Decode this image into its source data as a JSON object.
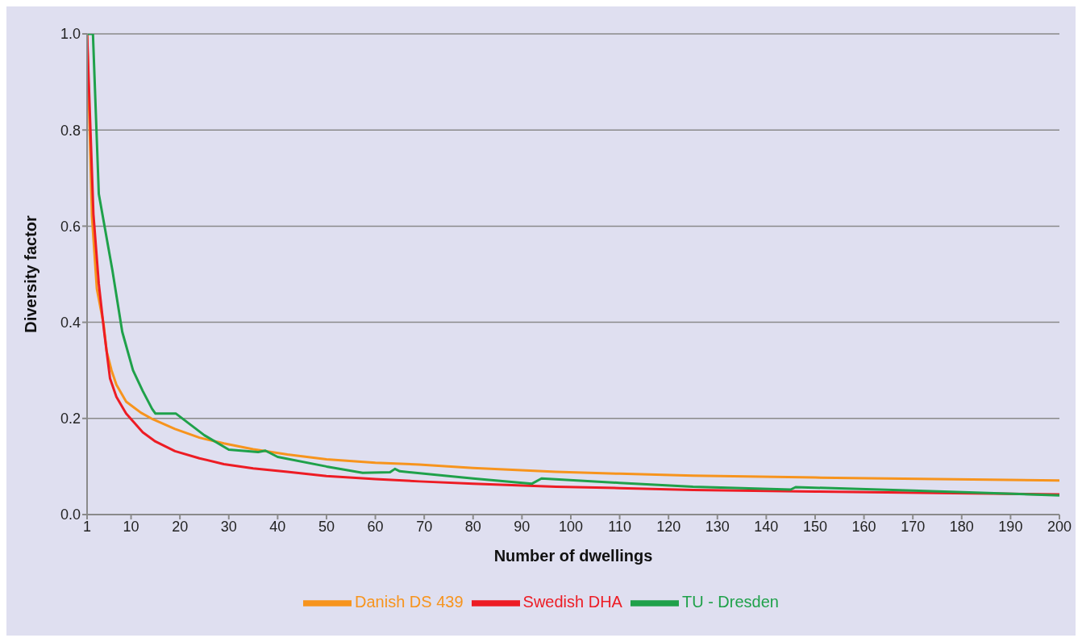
{
  "chart_data": {
    "type": "line",
    "xlabel": "Number of dwellings",
    "ylabel": "Diversity factor",
    "xlim": [
      1,
      200
    ],
    "xticks": [
      1,
      10,
      20,
      30,
      40,
      50,
      60,
      70,
      80,
      90,
      100,
      110,
      120,
      130,
      140,
      150,
      160,
      170,
      180,
      190,
      200
    ],
    "ylim": [
      0,
      1
    ],
    "yticks": [
      {
        "value": 0,
        "label": "0.0"
      },
      {
        "value": 0.2,
        "label": "0.2"
      },
      {
        "value": 0.4,
        "label": "0.4"
      },
      {
        "value": 0.6,
        "label": "0.6"
      },
      {
        "value": 0.8,
        "label": "0.8"
      },
      {
        "value": 1,
        "label": "1.0"
      }
    ],
    "grid": "y",
    "legend": "bottom",
    "marker": "none",
    "line_style": "solid",
    "series": [
      {
        "name": "Danish DS 439",
        "color": "#f7941d",
        "x": [
          1,
          2,
          3,
          4.4,
          5,
          6,
          7,
          9,
          12,
          14.5,
          19,
          24,
          29,
          35,
          42,
          50,
          60,
          69,
          80,
          97,
          110,
          125,
          150,
          175,
          200
        ],
        "values": [
          1,
          0.62,
          0.47,
          0.395,
          0.34,
          0.3,
          0.27,
          0.235,
          0.212,
          0.198,
          0.178,
          0.16,
          0.148,
          0.136,
          0.125,
          0.115,
          0.108,
          0.104,
          0.097,
          0.089,
          0.085,
          0.081,
          0.077,
          0.074,
          0.071
        ]
      },
      {
        "name": "Swedish DHA",
        "color": "#ed1c24",
        "x": [
          1,
          2.3,
          3.4,
          4.5,
          5.7,
          7,
          9,
          12.4,
          15,
          19,
          24,
          29,
          35,
          42,
          50,
          60,
          69,
          80,
          97,
          110,
          125,
          150,
          175,
          200
        ],
        "values": [
          1,
          0.625,
          0.48,
          0.38,
          0.283,
          0.245,
          0.21,
          0.171,
          0.152,
          0.132,
          0.117,
          0.105,
          0.096,
          0.089,
          0.08,
          0.074,
          0.069,
          0.064,
          0.058,
          0.055,
          0.051,
          0.048,
          0.045,
          0.042
        ]
      },
      {
        "name": "TU - Dresden",
        "color": "#1fa14a",
        "x": [
          1,
          2.2,
          3.4,
          6.2,
          8.2,
          10.4,
          12.4,
          14.3,
          15,
          19.2,
          25,
          30,
          36,
          37.5,
          40,
          50,
          57.4,
          63,
          64,
          65,
          80,
          92,
          94,
          110,
          125,
          145,
          146,
          170,
          200
        ],
        "values": [
          1,
          1,
          0.667,
          0.507,
          0.38,
          0.3,
          0.257,
          0.22,
          0.21,
          0.21,
          0.165,
          0.135,
          0.13,
          0.133,
          0.12,
          0.1,
          0.087,
          0.088,
          0.095,
          0.09,
          0.075,
          0.064,
          0.075,
          0.066,
          0.058,
          0.052,
          0.057,
          0.05,
          0.04
        ]
      }
    ]
  }
}
